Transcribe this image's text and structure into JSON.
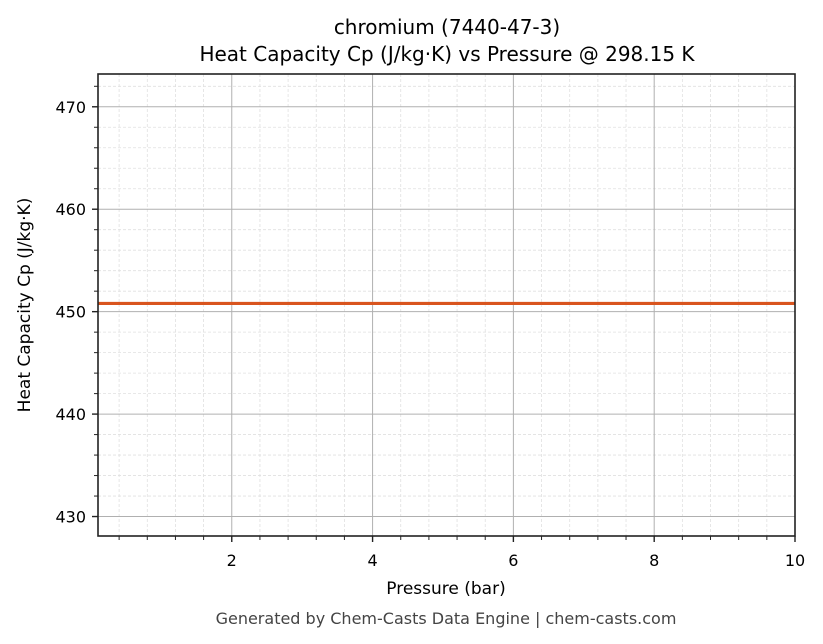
{
  "title": {
    "line1": "chromium (7440-47-3)",
    "line2": "Heat Capacity Cp (J/kg·K) vs Pressure @ 298.15 K"
  },
  "footer": "Generated by Chem-Casts Data Engine | chem-casts.com",
  "colors": {
    "series": "#d9541e",
    "major_grid": "#b0b0b0",
    "minor_grid": "#e0e0e0",
    "axis": "#222222",
    "footer_text": "#444444"
  },
  "chart_data": {
    "type": "line",
    "title": "chromium (7440-47-3)\nHeat Capacity Cp (J/kg·K) vs Pressure @ 298.15 K",
    "xlabel": "Pressure (bar)",
    "ylabel": "Heat Capacity Cp (J/kg·K)",
    "xlim": [
      0.1,
      10
    ],
    "ylim": [
      428.1,
      473.2
    ],
    "xticks": [
      2,
      4,
      6,
      8,
      10
    ],
    "xtick_labels": [
      "2",
      "4",
      "6",
      "8",
      "10"
    ],
    "yticks": [
      430,
      440,
      450,
      460,
      470
    ],
    "ytick_labels": [
      "430",
      "440",
      "450",
      "460",
      "470"
    ],
    "x_minor_step": 0.4,
    "y_minor_step": 2,
    "grid": true,
    "minor_grid": true,
    "legend": null,
    "series": [
      {
        "name": "Cp",
        "color": "#d9541e",
        "x": [
          0.1,
          1,
          2,
          3,
          4,
          5,
          6,
          7,
          8,
          9,
          10
        ],
        "values": [
          450.8,
          450.8,
          450.8,
          450.8,
          450.8,
          450.8,
          450.8,
          450.8,
          450.8,
          450.8,
          450.8
        ]
      }
    ]
  }
}
